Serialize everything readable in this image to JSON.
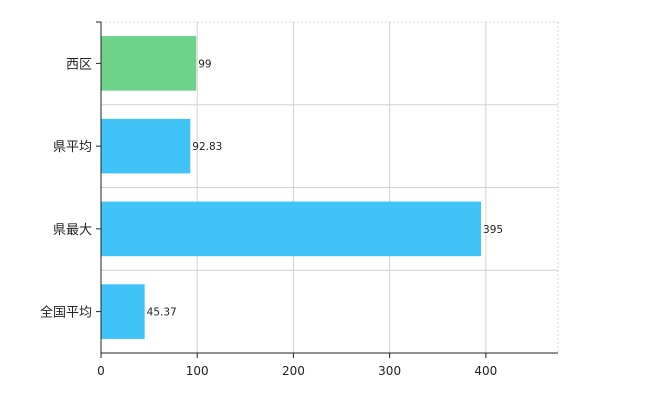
{
  "chart_data": {
    "type": "bar",
    "orientation": "horizontal",
    "categories": [
      "西区",
      "県平均",
      "県最大",
      "全国平均"
    ],
    "values": [
      99,
      92.83,
      395,
      45.37
    ],
    "value_labels": [
      "99",
      "92.83",
      "395",
      "45.37"
    ],
    "bar_colors": [
      "#6dd38a",
      "#40c3f7",
      "#40c3f7",
      "#40c3f7"
    ],
    "xlim": [
      0,
      475
    ],
    "xticks": [
      0,
      100,
      200,
      300,
      400
    ],
    "xtick_labels": [
      "0",
      "100",
      "200",
      "300",
      "400"
    ],
    "grid": true,
    "title": "",
    "xlabel": "",
    "ylabel": ""
  }
}
